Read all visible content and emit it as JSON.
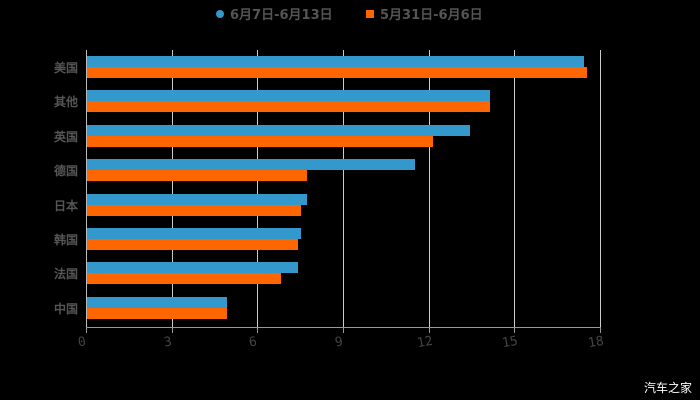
{
  "chart_data": {
    "type": "bar",
    "orientation": "horizontal",
    "title": "",
    "xlabel": "",
    "ylabel": "",
    "xlim": [
      0,
      18
    ],
    "xticks": [
      0,
      3,
      6,
      9,
      12,
      15,
      18
    ],
    "grid": true,
    "legend_position": "top",
    "categories": [
      "美国",
      "其他",
      "英国",
      "德国",
      "日本",
      "韩国",
      "法国",
      "中国"
    ],
    "series": [
      {
        "name": "6月7日-6月13日",
        "color": "#3399cc",
        "marker": "circle",
        "values": [
          17.4,
          14.1,
          13.4,
          11.5,
          7.7,
          7.5,
          7.4,
          4.9
        ]
      },
      {
        "name": "5月31日-6月6日",
        "color": "#ff6600",
        "marker": "square",
        "values": [
          17.5,
          14.1,
          12.1,
          7.7,
          7.5,
          7.4,
          6.8,
          4.9
        ]
      }
    ]
  },
  "legend": {
    "series1": "6月7日-6月13日",
    "series2": "5月31日-6月6日"
  },
  "watermark": "汽车之家"
}
